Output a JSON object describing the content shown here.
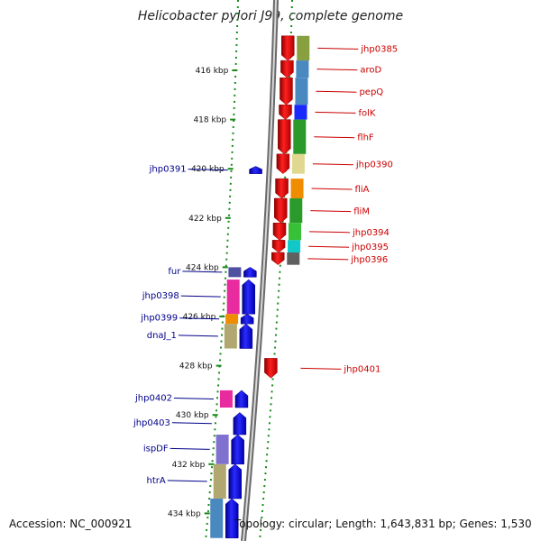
{
  "title": "Helicobacter pylori J99, complete genome",
  "footer": {
    "accession": "Accession: NC_000921",
    "summary": "Topology: circular; Length: 1,643,831 bp; Genes: 1,530"
  },
  "ticks": [
    {
      "label": "416 kbp",
      "pos": 416
    },
    {
      "label": "418 kbp",
      "pos": 418
    },
    {
      "label": "420 kbp",
      "pos": 420
    },
    {
      "label": "422 kbp",
      "pos": 422
    },
    {
      "label": "424 kbp",
      "pos": 424
    },
    {
      "label": "426 kbp",
      "pos": 426
    },
    {
      "label": "428 kbp",
      "pos": 428
    },
    {
      "label": "430 kbp",
      "pos": 430
    },
    {
      "label": "432 kbp",
      "pos": 432
    },
    {
      "label": "434 kbp",
      "pos": 434
    }
  ],
  "right_genes": [
    {
      "label": "jhp0385",
      "start": 414.6,
      "end": 415.6,
      "cog": "#88a040"
    },
    {
      "label": "aroD",
      "start": 415.6,
      "end": 416.3,
      "cog": "#4a88c0"
    },
    {
      "label": "pepQ",
      "start": 416.3,
      "end": 417.4,
      "cog": "#4a88c0"
    },
    {
      "label": "folK",
      "start": 417.4,
      "end": 418.0,
      "cog": "#1a2aff"
    },
    {
      "label": "flhF",
      "start": 418.0,
      "end": 419.4,
      "cog": "#2a9a2a"
    },
    {
      "label": "jhp0390",
      "start": 419.4,
      "end": 420.2,
      "cog": "#e0d890"
    },
    {
      "label": "fliA",
      "start": 420.4,
      "end": 421.2,
      "cog": "#f08c00"
    },
    {
      "label": "fliM",
      "start": 421.2,
      "end": 422.2,
      "cog": "#2a9a2a"
    },
    {
      "label": "jhp0394",
      "start": 422.2,
      "end": 422.9,
      "cog": "#38c038"
    },
    {
      "label": "jhp0395",
      "start": 422.9,
      "end": 423.4,
      "cog": "#10c8c8"
    },
    {
      "label": "jhp0396",
      "start": 423.4,
      "end": 423.9,
      "cog": "#606060"
    },
    {
      "label": "jhp0401",
      "start": 427.7,
      "end": 428.5,
      "cog": ""
    }
  ],
  "left_genes": [
    {
      "label": "jhp0391",
      "start": 419.9,
      "end": 420.2,
      "cog": ""
    },
    {
      "label": "fur",
      "start": 424.0,
      "end": 424.4,
      "cog": "#5050a0"
    },
    {
      "label": "jhp0398",
      "start": 424.5,
      "end": 425.9,
      "cog": "#e82ca0"
    },
    {
      "label": "jhp0399",
      "start": 425.9,
      "end": 426.3,
      "cog": "#f08c00"
    },
    {
      "label": "dnaJ_1",
      "start": 426.3,
      "end": 427.3,
      "cog": "#b0a870"
    },
    {
      "label": "jhp0402",
      "start": 429.0,
      "end": 429.7,
      "cog": "#e82ca0"
    },
    {
      "label": "jhp0403",
      "start": 429.9,
      "end": 430.8,
      "cog": ""
    },
    {
      "label": "ispDF",
      "start": 430.8,
      "end": 432.0,
      "cog": "#8070d0"
    },
    {
      "label": "htrA",
      "start": 432.0,
      "end": 433.4,
      "cog": "#b0a870"
    },
    {
      "label": "",
      "start": 433.4,
      "end": 435.0,
      "cog": "#4a88c0"
    }
  ]
}
